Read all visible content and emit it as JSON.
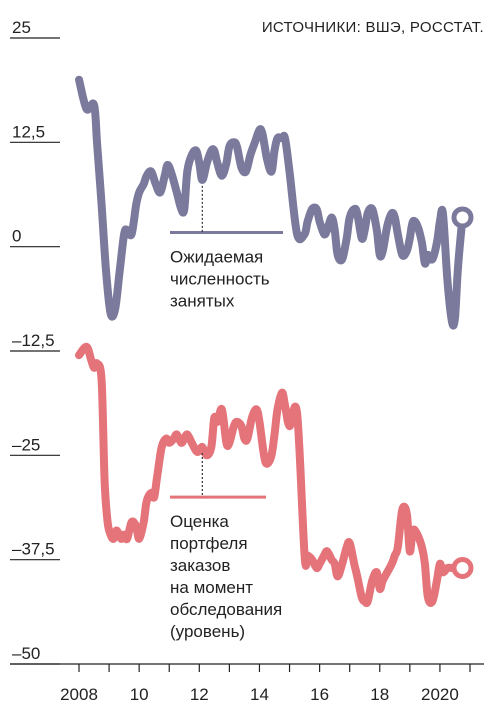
{
  "source": "ИСТОЧНИКИ: ВШЭ, РОССТАТ.",
  "chart_data": {
    "type": "line",
    "title": "",
    "xlabel": "",
    "ylabel": "",
    "ylim": [
      -50,
      25
    ],
    "yticks": [
      "25",
      "12,5",
      "0",
      "–12,5",
      "–25",
      "–37,5",
      "–50"
    ],
    "ytick_values": [
      25,
      12.5,
      0,
      -12.5,
      -25,
      -37.5,
      -50
    ],
    "xlim": [
      2008,
      2021
    ],
    "xticks": [
      "2008",
      "10",
      "12",
      "14",
      "16",
      "18",
      "2020"
    ],
    "xtick_values": [
      2008,
      2010,
      2012,
      2014,
      2016,
      2018,
      2020
    ],
    "grid": false,
    "series": [
      {
        "name": "employment",
        "color": "#7b7a9c",
        "label_lines": [
          "Ожидаемая",
          "численность",
          "занятых"
        ],
        "label_anchor": [
          2012.1,
          1.7
        ],
        "x": [
          2008.0,
          2008.25,
          2008.5,
          2008.6,
          2008.75,
          2008.9,
          2009.05,
          2009.2,
          2009.35,
          2009.5,
          2009.6,
          2009.75,
          2009.9,
          2010.0,
          2010.15,
          2010.25,
          2010.4,
          2010.55,
          2010.7,
          2010.85,
          2010.95,
          2011.1,
          2011.25,
          2011.4,
          2011.5,
          2011.6,
          2011.75,
          2011.9,
          2012.0,
          2012.1,
          2012.25,
          2012.4,
          2012.5,
          2012.6,
          2012.75,
          2012.9,
          2013.0,
          2013.15,
          2013.25,
          2013.4,
          2013.55,
          2013.7,
          2013.85,
          2014.0,
          2014.1,
          2014.25,
          2014.4,
          2014.5,
          2014.6,
          2014.75,
          2014.85,
          2015.0,
          2015.25,
          2015.5,
          2015.6,
          2015.75,
          2015.9,
          2016.0,
          2016.15,
          2016.25,
          2016.4,
          2016.5,
          2016.6,
          2016.75,
          2016.9,
          2017.0,
          2017.15,
          2017.25,
          2017.4,
          2017.5,
          2017.6,
          2017.75,
          2017.9,
          2018.0,
          2018.1,
          2018.25,
          2018.4,
          2018.5,
          2018.6,
          2018.75,
          2018.9,
          2019.0,
          2019.1,
          2019.25,
          2019.4,
          2019.5,
          2019.6,
          2019.75,
          2019.9,
          2020.0,
          2020.1,
          2020.25,
          2020.4,
          2020.5,
          2020.6,
          2020.75
        ],
        "y": [
          20.0,
          16.5,
          17.0,
          12.5,
          5.0,
          -3.0,
          -8.0,
          -7.5,
          -3.0,
          1.5,
          2.0,
          1.5,
          5.0,
          6.5,
          7.5,
          8.5,
          9.0,
          7.5,
          6.5,
          8.5,
          9.8,
          8.5,
          6.5,
          4.5,
          4.5,
          9.0,
          11.0,
          11.5,
          10.0,
          8.0,
          10.0,
          11.5,
          11.5,
          10.0,
          8.5,
          10.0,
          12.0,
          12.5,
          12.0,
          9.5,
          9.0,
          11.0,
          12.5,
          14.0,
          13.5,
          10.5,
          9.0,
          11.5,
          13.0,
          13.0,
          13.0,
          9.0,
          1.5,
          1.5,
          3.0,
          4.5,
          4.5,
          3.0,
          1.5,
          2.0,
          3.5,
          2.0,
          -1.0,
          -1.5,
          1.0,
          3.5,
          4.5,
          4.0,
          1.0,
          2.0,
          4.0,
          4.5,
          2.0,
          -1.0,
          -0.5,
          2.5,
          4.0,
          3.5,
          1.5,
          -1.0,
          -0.5,
          1.0,
          3.0,
          2.5,
          0.5,
          -2.0,
          -1.0,
          -1.5,
          0.5,
          3.0,
          4.0,
          -4.0,
          -9.0,
          -8.5,
          -2.5,
          3.5
        ],
        "end_marker": [
          2020.75,
          3.5
        ]
      },
      {
        "name": "orders",
        "color": "#e4737a",
        "label_lines": [
          "Оценка",
          "портфеля",
          "заказов",
          "на момент",
          "обследования",
          "(уровень)"
        ],
        "label_anchor": [
          2012.1,
          -30.0
        ],
        "x": [
          2008.0,
          2008.25,
          2008.4,
          2008.5,
          2008.6,
          2008.75,
          2008.85,
          2008.95,
          2009.05,
          2009.15,
          2009.25,
          2009.4,
          2009.5,
          2009.6,
          2009.75,
          2009.9,
          2010.0,
          2010.15,
          2010.25,
          2010.4,
          2010.5,
          2010.6,
          2010.75,
          2010.9,
          2011.0,
          2011.15,
          2011.25,
          2011.4,
          2011.5,
          2011.6,
          2011.75,
          2011.9,
          2012.0,
          2012.1,
          2012.25,
          2012.4,
          2012.5,
          2012.6,
          2012.75,
          2012.9,
          2013.0,
          2013.15,
          2013.25,
          2013.4,
          2013.5,
          2013.6,
          2013.75,
          2013.9,
          2014.0,
          2014.15,
          2014.25,
          2014.4,
          2014.5,
          2014.6,
          2014.75,
          2014.85,
          2015.0,
          2015.25,
          2015.5,
          2015.6,
          2015.75,
          2015.9,
          2016.0,
          2016.15,
          2016.25,
          2016.4,
          2016.5,
          2016.6,
          2016.75,
          2016.9,
          2017.0,
          2017.15,
          2017.25,
          2017.4,
          2017.5,
          2017.6,
          2017.75,
          2017.9,
          2018.0,
          2018.1,
          2018.25,
          2018.4,
          2018.5,
          2018.6,
          2018.75,
          2018.9,
          2019.0,
          2019.1,
          2019.25,
          2019.4,
          2019.5,
          2019.6,
          2019.75,
          2019.9,
          2020.0,
          2020.1,
          2020.25,
          2020.4,
          2020.5,
          2020.6,
          2020.75
        ],
        "y": [
          -13.0,
          -12.0,
          -13.5,
          -14.5,
          -14.0,
          -16.0,
          -28.0,
          -33.0,
          -34.5,
          -35.0,
          -34.0,
          -35.0,
          -34.5,
          -35.0,
          -33.0,
          -33.5,
          -35.0,
          -33.0,
          -30.5,
          -29.5,
          -30.0,
          -27.5,
          -24.0,
          -23.0,
          -23.5,
          -23.0,
          -22.5,
          -23.5,
          -23.0,
          -22.5,
          -23.5,
          -24.5,
          -24.5,
          -24.0,
          -25.0,
          -24.0,
          -20.5,
          -21.0,
          -19.5,
          -23.5,
          -23.5,
          -21.5,
          -21.0,
          -21.5,
          -23.0,
          -23.0,
          -20.5,
          -19.5,
          -21.0,
          -25.0,
          -26.0,
          -25.0,
          -22.5,
          -19.5,
          -17.5,
          -19.0,
          -21.5,
          -20.0,
          -37.0,
          -37.0,
          -37.5,
          -38.5,
          -38.0,
          -37.0,
          -36.5,
          -37.5,
          -38.0,
          -39.5,
          -38.0,
          -36.0,
          -35.5,
          -38.0,
          -39.5,
          -42.0,
          -42.5,
          -42.5,
          -40.0,
          -39.0,
          -41.0,
          -40.0,
          -39.0,
          -38.0,
          -37.0,
          -36.0,
          -31.5,
          -32.0,
          -36.5,
          -34.0,
          -34.5,
          -36.0,
          -38.0,
          -42.0,
          -42.5,
          -40.0,
          -38.0,
          -39.0,
          -38.5,
          -38.5,
          -38.5,
          -38.5,
          -38.5
        ],
        "end_marker": [
          2020.75,
          -38.5
        ]
      }
    ]
  },
  "colors": {
    "axis": "#222222",
    "connector": "#333333"
  }
}
